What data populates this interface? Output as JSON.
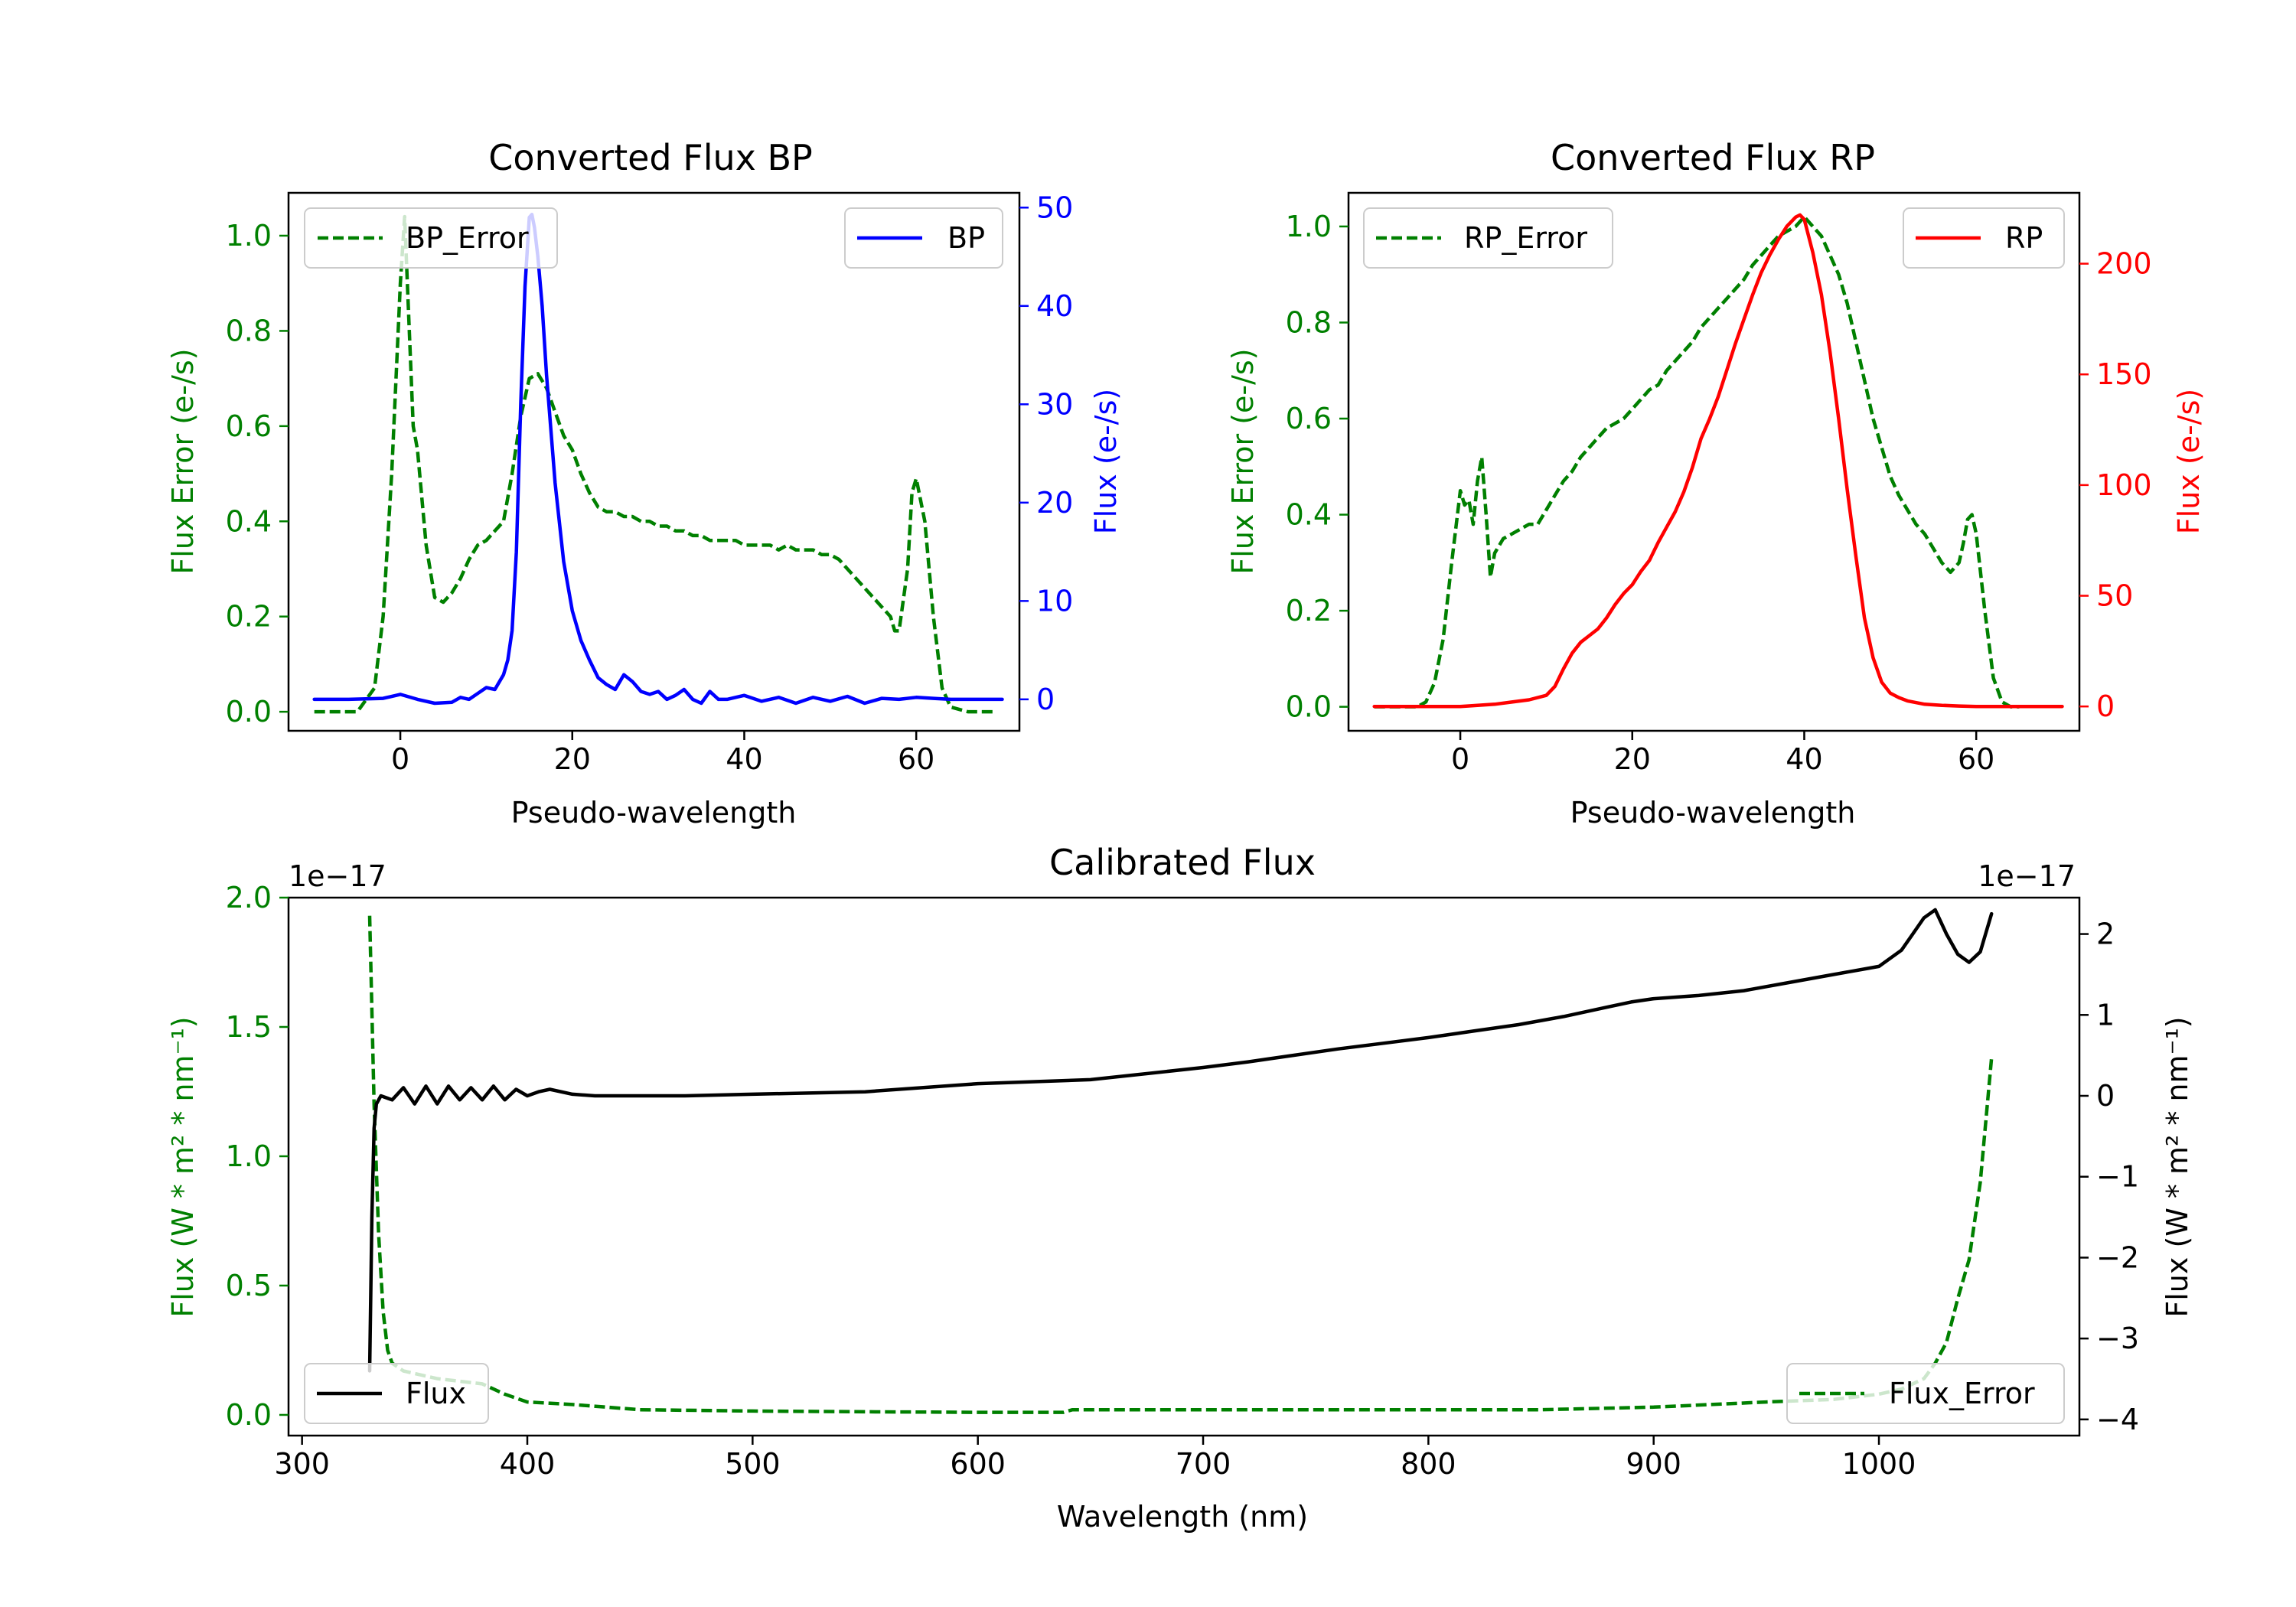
{
  "colors": {
    "green": "#008000",
    "blue": "#0000ff",
    "red": "#ff0000",
    "black": "#000000"
  },
  "chart_data": [
    {
      "id": "bp",
      "type": "line",
      "title": "Converted Flux BP",
      "xlabel": "Pseudo-wavelength",
      "ylabel_left": "Flux Error (e-/s)",
      "ylabel_right": "Flux (e-/s)",
      "xlim": [
        -13,
        72
      ],
      "ylim_left": [
        -0.04,
        1.09
      ],
      "ylim_right": [
        -3.2,
        51.5
      ],
      "xticks": [
        0,
        20,
        40,
        60
      ],
      "yticks_left": [
        0.0,
        0.2,
        0.4,
        0.6,
        0.8,
        1.0
      ],
      "ytick_labels_left": [
        "0.0",
        "0.2",
        "0.4",
        "0.6",
        "0.8",
        "1.0"
      ],
      "yticks_right": [
        0,
        10,
        20,
        30,
        40,
        50
      ],
      "legend": [
        {
          "label": "BP_Error",
          "position": "upper-left"
        },
        {
          "label": "BP",
          "position": "upper-right"
        }
      ],
      "series": [
        {
          "name": "BP_Error",
          "axis": "left",
          "style": "dashed",
          "color": "#008000",
          "x": [
            -10,
            -5,
            -3,
            -2,
            -1,
            0,
            0.5,
            1.5,
            2,
            3,
            4,
            5,
            6,
            7,
            8,
            9,
            10,
            11,
            12,
            13,
            14,
            15,
            16,
            17,
            18,
            19,
            20,
            21,
            22,
            23,
            24,
            25,
            26,
            27,
            28,
            29,
            30,
            31,
            32,
            33,
            34,
            35,
            36,
            37,
            38,
            39,
            40,
            41,
            42,
            43,
            44,
            45,
            46,
            47,
            48,
            49,
            50,
            51,
            52,
            53,
            54,
            55,
            56,
            57,
            57.5,
            58,
            59,
            59.5,
            60,
            61,
            62,
            63,
            64,
            66,
            69
          ],
          "values": [
            0.0,
            0.0,
            0.05,
            0.2,
            0.5,
            0.9,
            1.04,
            0.6,
            0.55,
            0.35,
            0.24,
            0.23,
            0.25,
            0.28,
            0.32,
            0.35,
            0.36,
            0.38,
            0.4,
            0.5,
            0.62,
            0.7,
            0.71,
            0.68,
            0.63,
            0.58,
            0.55,
            0.5,
            0.46,
            0.43,
            0.42,
            0.42,
            0.41,
            0.41,
            0.4,
            0.4,
            0.39,
            0.39,
            0.38,
            0.38,
            0.37,
            0.37,
            0.36,
            0.36,
            0.36,
            0.36,
            0.35,
            0.35,
            0.35,
            0.35,
            0.34,
            0.35,
            0.34,
            0.34,
            0.34,
            0.33,
            0.33,
            0.32,
            0.3,
            0.28,
            0.26,
            0.24,
            0.22,
            0.2,
            0.17,
            0.17,
            0.3,
            0.46,
            0.49,
            0.4,
            0.2,
            0.05,
            0.01,
            0.0,
            0.0
          ]
        },
        {
          "name": "BP",
          "axis": "right",
          "style": "solid",
          "color": "#0000ff",
          "x": [
            -10,
            -6,
            -2,
            0,
            2,
            4,
            6,
            7,
            8,
            9,
            10,
            11,
            12,
            12.5,
            13,
            13.5,
            14,
            14.5,
            15,
            15.3,
            15.6,
            16,
            16.5,
            17,
            18,
            19,
            20,
            21,
            22,
            23,
            24,
            25,
            26,
            27,
            28,
            29,
            30,
            31,
            32,
            33,
            34,
            35,
            36,
            37,
            38,
            40,
            42,
            44,
            46,
            48,
            50,
            52,
            54,
            56,
            58,
            60,
            62,
            64,
            66,
            68,
            70
          ],
          "values": [
            0.0,
            0.0,
            0.1,
            0.5,
            0.0,
            -0.4,
            -0.3,
            0.2,
            0.0,
            0.6,
            1.2,
            1.0,
            2.5,
            4.0,
            7.0,
            15.0,
            30.0,
            42.0,
            49.0,
            49.3,
            48.0,
            45.0,
            40.0,
            33.0,
            22.0,
            14.0,
            9.0,
            6.0,
            4.0,
            2.2,
            1.5,
            1.0,
            2.5,
            1.8,
            0.8,
            0.5,
            0.8,
            0.0,
            0.4,
            1.0,
            0.0,
            -0.4,
            0.8,
            0.0,
            0.0,
            0.4,
            -0.2,
            0.2,
            -0.4,
            0.2,
            -0.2,
            0.3,
            -0.4,
            0.1,
            0.0,
            0.2,
            0.1,
            0.0,
            0.0,
            0.0,
            0.0
          ]
        }
      ]
    },
    {
      "id": "rp",
      "type": "line",
      "title": "Converted Flux RP",
      "xlabel": "Pseudo-wavelength",
      "ylabel_left": "Flux Error (e-/s)",
      "ylabel_right": "Flux (e-/s)",
      "xlim": [
        -13,
        72
      ],
      "ylim_left": [
        -0.05,
        1.07
      ],
      "ylim_right": [
        -11,
        232
      ],
      "xticks": [
        0,
        20,
        40,
        60
      ],
      "yticks_left": [
        0.0,
        0.2,
        0.4,
        0.6,
        0.8,
        1.0
      ],
      "ytick_labels_left": [
        "0.0",
        "0.2",
        "0.4",
        "0.6",
        "0.8",
        "1.0"
      ],
      "yticks_right": [
        0,
        50,
        100,
        150,
        200
      ],
      "legend": [
        {
          "label": "RP_Error",
          "position": "upper-left"
        },
        {
          "label": "RP",
          "position": "upper-right"
        }
      ],
      "series": [
        {
          "name": "RP_Error",
          "axis": "left",
          "style": "dashed",
          "color": "#008000",
          "x": [
            -10,
            -5,
            -4,
            -3,
            -2,
            -1,
            0,
            0.5,
            1,
            1.5,
            2,
            2.5,
            3,
            3.5,
            4,
            5,
            6,
            7,
            8,
            9,
            10,
            11,
            12,
            13,
            14,
            15,
            16,
            17,
            18,
            19,
            20,
            21,
            22,
            23,
            24,
            25,
            26,
            27,
            28,
            29,
            30,
            31,
            32,
            33,
            34,
            35,
            36,
            37,
            38,
            39,
            40,
            41,
            42,
            43,
            44,
            45,
            46,
            47,
            48,
            49,
            50,
            51,
            52,
            53,
            54,
            55,
            56,
            57,
            58,
            58.5,
            59,
            59.5,
            60,
            61,
            62,
            63,
            64,
            65
          ],
          "values": [
            0.0,
            0.0,
            0.01,
            0.05,
            0.14,
            0.3,
            0.45,
            0.42,
            0.43,
            0.38,
            0.47,
            0.52,
            0.4,
            0.27,
            0.32,
            0.35,
            0.36,
            0.37,
            0.38,
            0.38,
            0.41,
            0.44,
            0.47,
            0.49,
            0.52,
            0.54,
            0.56,
            0.58,
            0.59,
            0.6,
            0.62,
            0.64,
            0.66,
            0.67,
            0.7,
            0.72,
            0.74,
            0.76,
            0.79,
            0.81,
            0.83,
            0.85,
            0.87,
            0.89,
            0.92,
            0.94,
            0.96,
            0.98,
            0.99,
            1.0,
            1.02,
            1.0,
            0.98,
            0.94,
            0.9,
            0.84,
            0.76,
            0.68,
            0.6,
            0.54,
            0.48,
            0.44,
            0.41,
            0.38,
            0.36,
            0.33,
            0.3,
            0.28,
            0.3,
            0.34,
            0.39,
            0.4,
            0.36,
            0.2,
            0.06,
            0.01,
            0.0,
            0.0
          ]
        },
        {
          "name": "RP",
          "axis": "right",
          "style": "solid",
          "color": "#ff0000",
          "x": [
            -10,
            0,
            4,
            6,
            8,
            10,
            11,
            12,
            13,
            14,
            15,
            16,
            17,
            18,
            19,
            20,
            21,
            22,
            23,
            24,
            25,
            26,
            27,
            28,
            29,
            30,
            31,
            32,
            33,
            34,
            35,
            36,
            37,
            38,
            39,
            39.5,
            40,
            41,
            42,
            43,
            44,
            45,
            46,
            47,
            48,
            49,
            50,
            51,
            52,
            54,
            56,
            58,
            60,
            62,
            64,
            66,
            70
          ],
          "values": [
            0.0,
            0.0,
            1.0,
            2.0,
            3.0,
            5.0,
            9.0,
            17.0,
            24.0,
            29.0,
            32.0,
            35.0,
            40.0,
            46.0,
            51.0,
            55.0,
            61.0,
            66.0,
            74.0,
            81.0,
            88.0,
            97.0,
            108.0,
            121.0,
            130.0,
            140.0,
            152.0,
            164.0,
            175.0,
            186.0,
            196.0,
            204.0,
            211.0,
            217.0,
            221.0,
            222.0,
            220.0,
            205.0,
            186.0,
            160.0,
            130.0,
            98.0,
            68.0,
            40.0,
            22.0,
            11.0,
            6.0,
            4.0,
            2.5,
            1.0,
            0.5,
            0.2,
            0.0,
            0.0,
            0.0,
            0.0,
            0.0
          ]
        }
      ]
    },
    {
      "id": "cal",
      "type": "line",
      "title": "Calibrated Flux",
      "xlabel": "Wavelength (nm)",
      "ylabel_left": "Flux (W * m² * nm⁻¹)",
      "ylabel_right": "Flux (W * m² * nm⁻¹)",
      "offset_left": "1e−17",
      "offset_right": "1e−17",
      "xlim": [
        294,
        1089
      ],
      "ylim_left": [
        -0.08,
        2.0
      ],
      "ylim_right": [
        -4.2,
        2.45
      ],
      "xticks": [
        300,
        400,
        500,
        600,
        700,
        800,
        900,
        1000
      ],
      "yticks_left": [
        0.0,
        0.5,
        1.0,
        1.5,
        2.0
      ],
      "ytick_labels_left": [
        "0.0",
        "0.5",
        "1.0",
        "1.5",
        "2.0"
      ],
      "yticks_right": [
        -4,
        -3,
        -2,
        -1,
        0,
        1,
        2
      ],
      "ytick_labels_right": [
        "−4",
        "−3",
        "−2",
        "−1",
        "0",
        "1",
        "2"
      ],
      "legend": [
        {
          "label": "Flux",
          "position": "lower-left"
        },
        {
          "label": "Flux_Error",
          "position": "lower-right"
        }
      ],
      "series": [
        {
          "name": "Flux_Error",
          "axis": "left",
          "style": "dashed",
          "color": "#008000",
          "x": [
            330,
            332,
            334,
            336,
            338,
            340,
            345,
            350,
            360,
            370,
            380,
            390,
            400,
            420,
            450,
            500,
            550,
            600,
            638,
            642,
            650,
            700,
            750,
            800,
            850,
            900,
            950,
            980,
            1000,
            1010,
            1020,
            1025,
            1030,
            1035,
            1040,
            1045,
            1050
          ],
          "values": [
            1.93,
            1.2,
            0.7,
            0.4,
            0.25,
            0.2,
            0.17,
            0.16,
            0.14,
            0.13,
            0.12,
            0.08,
            0.05,
            0.04,
            0.02,
            0.015,
            0.012,
            0.01,
            0.01,
            0.02,
            0.02,
            0.02,
            0.02,
            0.02,
            0.02,
            0.03,
            0.05,
            0.06,
            0.08,
            0.1,
            0.14,
            0.2,
            0.28,
            0.45,
            0.6,
            0.9,
            1.38
          ]
        },
        {
          "name": "Flux",
          "axis": "right",
          "style": "solid",
          "color": "#000000",
          "x": [
            330,
            331,
            332,
            333,
            335,
            340,
            345,
            350,
            355,
            360,
            365,
            370,
            375,
            380,
            385,
            390,
            395,
            400,
            405,
            410,
            420,
            430,
            450,
            470,
            500,
            550,
            600,
            650,
            700,
            720,
            740,
            760,
            780,
            800,
            820,
            840,
            860,
            880,
            890,
            900,
            920,
            940,
            960,
            980,
            1000,
            1010,
            1015,
            1020,
            1025,
            1030,
            1035,
            1040,
            1045,
            1050
          ],
          "values": [
            -3.4,
            -1.5,
            -0.4,
            -0.1,
            0.0,
            -0.05,
            0.1,
            -0.1,
            0.12,
            -0.1,
            0.12,
            -0.05,
            0.1,
            -0.05,
            0.12,
            -0.05,
            0.08,
            0.0,
            0.05,
            0.08,
            0.02,
            0.0,
            0.0,
            0.0,
            0.02,
            0.05,
            0.15,
            0.2,
            0.35,
            0.42,
            0.5,
            0.58,
            0.65,
            0.72,
            0.8,
            0.88,
            0.98,
            1.1,
            1.16,
            1.2,
            1.24,
            1.3,
            1.4,
            1.5,
            1.6,
            1.8,
            2.0,
            2.2,
            2.3,
            2.0,
            1.75,
            1.65,
            1.78,
            2.25
          ]
        }
      ]
    }
  ]
}
